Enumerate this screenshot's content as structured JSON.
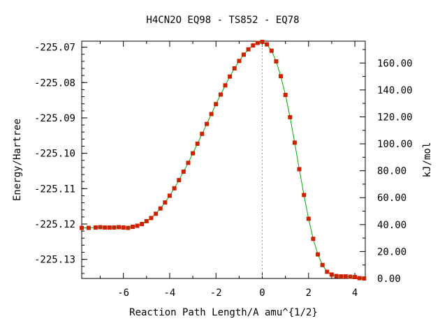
{
  "chart_data": {
    "type": "line",
    "title": "H4CN2O   EQ98 - TS852 - EQ78",
    "xlabel": "Reaction Path Length/A amu^{1/2}",
    "ylabel": "Energy/Hartree",
    "y2label": "kJ/mol",
    "xlim": [
      -7.8,
      4.45
    ],
    "ylim": [
      -225.1354,
      -225.0683
    ],
    "y2lim": [
      0.0,
      176.2
    ],
    "x_ticks": [
      -6,
      -4,
      -2,
      0,
      2,
      4
    ],
    "x_tick_labels": [
      "-6",
      "-4",
      "-2",
      "0",
      "2",
      "4"
    ],
    "y_ticks": [
      -225.07,
      -225.08,
      -225.09,
      -225.1,
      -225.11,
      -225.12,
      -225.13
    ],
    "y_tick_labels": [
      "-225.07",
      "-225.08",
      "-225.09",
      "-225.10",
      "-225.11",
      "-225.12",
      "-225.13"
    ],
    "y2_ticks": [
      0,
      20,
      40,
      60,
      80,
      100,
      120,
      140,
      160
    ],
    "y2_tick_labels": [
      "0.00",
      "20.00",
      "40.00",
      "60.00",
      "80.00",
      "100.00",
      "120.00",
      "140.00",
      "160.00"
    ],
    "ts_x": 0,
    "grid": false,
    "series": [
      {
        "line_color": "#00aa00",
        "marker_color": "#cc2200",
        "points": [
          [
            -7.8,
            -225.1211
          ],
          [
            -7.5,
            -225.1211
          ],
          [
            -7.2,
            -225.121
          ],
          [
            -7.0,
            -225.1209
          ],
          [
            -6.8,
            -225.121
          ],
          [
            -6.6,
            -225.121
          ],
          [
            -6.4,
            -225.121
          ],
          [
            -6.2,
            -225.1209
          ],
          [
            -6.0,
            -225.121
          ],
          [
            -5.8,
            -225.1211
          ],
          [
            -5.6,
            -225.1208
          ],
          [
            -5.4,
            -225.1205
          ],
          [
            -5.2,
            -225.12
          ],
          [
            -5.0,
            -225.1192
          ],
          [
            -4.8,
            -225.1183
          ],
          [
            -4.6,
            -225.1171
          ],
          [
            -4.4,
            -225.1156
          ],
          [
            -4.2,
            -225.1139
          ],
          [
            -4.0,
            -225.112
          ],
          [
            -3.8,
            -225.1099
          ],
          [
            -3.6,
            -225.1076
          ],
          [
            -3.4,
            -225.1052
          ],
          [
            -3.2,
            -225.1027
          ],
          [
            -3.0,
            -225.1
          ],
          [
            -2.8,
            -225.0973
          ],
          [
            -2.6,
            -225.0945
          ],
          [
            -2.4,
            -225.0917
          ],
          [
            -2.2,
            -225.0889
          ],
          [
            -2.0,
            -225.0861
          ],
          [
            -1.8,
            -225.0834
          ],
          [
            -1.6,
            -225.0808
          ],
          [
            -1.4,
            -225.0783
          ],
          [
            -1.2,
            -225.076
          ],
          [
            -1.0,
            -225.0739
          ],
          [
            -0.8,
            -225.0721
          ],
          [
            -0.6,
            -225.0706
          ],
          [
            -0.4,
            -225.0695
          ],
          [
            -0.2,
            -225.0688
          ],
          [
            0.0,
            -225.0685
          ],
          [
            0.2,
            -225.0692
          ],
          [
            0.4,
            -225.071
          ],
          [
            0.6,
            -225.074
          ],
          [
            0.8,
            -225.0782
          ],
          [
            1.0,
            -225.0835
          ],
          [
            1.2,
            -225.0898
          ],
          [
            1.4,
            -225.097
          ],
          [
            1.6,
            -225.1045
          ],
          [
            1.8,
            -225.1118
          ],
          [
            2.0,
            -225.1185
          ],
          [
            2.2,
            -225.1242
          ],
          [
            2.4,
            -225.1286
          ],
          [
            2.6,
            -225.1316
          ],
          [
            2.8,
            -225.1335
          ],
          [
            3.0,
            -225.1343
          ],
          [
            3.2,
            -225.1347
          ],
          [
            3.4,
            -225.1348
          ],
          [
            3.6,
            -225.1348
          ],
          [
            3.8,
            -225.1349
          ],
          [
            4.0,
            -225.135
          ],
          [
            4.2,
            -225.1353
          ],
          [
            4.4,
            -225.1354
          ]
        ]
      }
    ]
  }
}
